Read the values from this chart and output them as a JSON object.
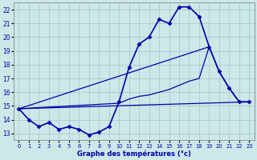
{
  "title": "Graphe des températures (°c)",
  "background_color": "#cce8e8",
  "grid_color": "#aacccc",
  "line_color": "#0000aa",
  "xlim": [
    -0.5,
    23.5
  ],
  "ylim": [
    12.5,
    22.5
  ],
  "xticks": [
    0,
    1,
    2,
    3,
    4,
    5,
    6,
    7,
    8,
    9,
    10,
    11,
    12,
    13,
    14,
    15,
    16,
    17,
    18,
    19,
    20,
    21,
    22,
    23
  ],
  "yticks": [
    13,
    14,
    15,
    16,
    17,
    18,
    19,
    20,
    21,
    22
  ],
  "series": [
    {
      "x": [
        0,
        1,
        2,
        3,
        4,
        5,
        6,
        7,
        8,
        9,
        10,
        11,
        12,
        13,
        14,
        15,
        16,
        17,
        18,
        19,
        20,
        21,
        22,
        23
      ],
      "y": [
        14.8,
        14.0,
        13.5,
        13.8,
        13.3,
        13.5,
        13.3,
        12.9,
        13.1,
        13.5,
        15.3,
        17.8,
        19.5,
        20.0,
        21.3,
        21.0,
        22.2,
        22.2,
        21.5,
        19.3,
        17.5,
        16.3,
        15.3,
        15.3
      ],
      "marker": true,
      "linewidth": 1.2
    },
    {
      "x": [
        0,
        23
      ],
      "y": [
        14.8,
        15.3
      ],
      "marker": false,
      "linewidth": 0.9
    },
    {
      "x": [
        0,
        10,
        11,
        12,
        13,
        14,
        15,
        16,
        17,
        18,
        19,
        20,
        21,
        22,
        23
      ],
      "y": [
        14.8,
        15.2,
        15.5,
        15.7,
        15.8,
        16.0,
        16.2,
        16.5,
        16.8,
        17.0,
        19.3,
        17.5,
        16.3,
        15.3,
        15.3
      ],
      "marker": false,
      "linewidth": 0.9
    },
    {
      "x": [
        0,
        19
      ],
      "y": [
        14.8,
        19.3
      ],
      "marker": false,
      "linewidth": 0.9
    }
  ]
}
